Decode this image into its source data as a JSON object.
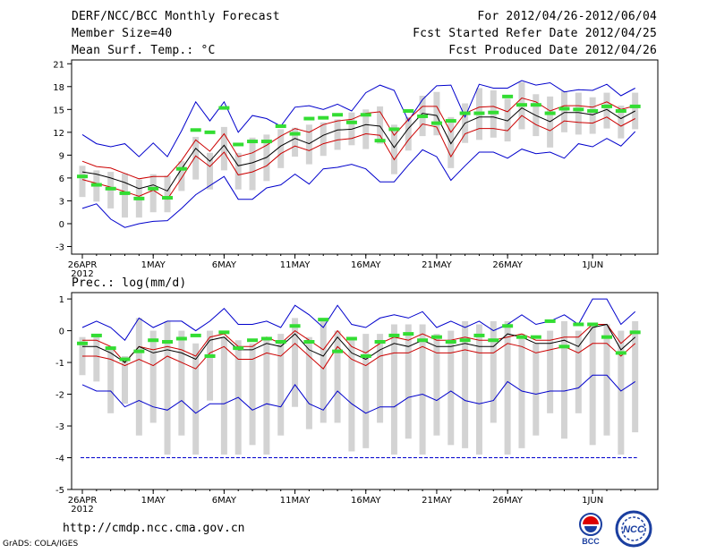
{
  "header": {
    "title": "DERF/NCC/BCC Monthly Forecast",
    "member_size": "Member Size=40",
    "variable": "Mean Surf. Temp.: °C",
    "period": "For 2012/04/26-2012/06/04",
    "start_date": "Fcst Started Refer Date 2012/04/25",
    "produced_date": "Fcst Produced Date 2012/04/26"
  },
  "footer": {
    "url": "http://cmdp.ncc.cma.gov.cn",
    "credit": "GrADS: COLA/IGES",
    "logo_bcc": "BCC",
    "logo_ncc": "NCC"
  },
  "colors": {
    "envelope": "#0000cc",
    "spread": "#cc0000",
    "mean": "#000000",
    "box": "#d3d3d3",
    "median": "#33dd33",
    "baseline": "#0000cc"
  },
  "chart_data": [
    {
      "type": "line",
      "title": "Mean Surf. Temp.: °C",
      "xlabel": "",
      "ylabel": "°C",
      "ylim": [
        -4,
        21.5
      ],
      "yticks": [
        -3,
        0,
        3,
        6,
        9,
        12,
        15,
        18,
        21
      ],
      "xticks": [
        {
          "day": 0,
          "label": "26APR",
          "sub": "2012"
        },
        {
          "day": 5,
          "label": "1MAY"
        },
        {
          "day": 10,
          "label": "6MAY"
        },
        {
          "day": 15,
          "label": "11MAY"
        },
        {
          "day": 20,
          "label": "16MAY"
        },
        {
          "day": 25,
          "label": "21MAY"
        },
        {
          "day": 30,
          "label": "26MAY"
        },
        {
          "day": 36,
          "label": "1JUN"
        }
      ],
      "x_days": [
        0,
        1,
        2,
        3,
        4,
        5,
        6,
        7,
        8,
        9,
        10,
        11,
        12,
        13,
        14,
        15,
        16,
        17,
        18,
        19,
        20,
        21,
        22,
        23,
        24,
        25,
        26,
        27,
        28,
        29,
        30,
        31,
        32,
        33,
        34,
        35,
        36,
        37,
        38,
        39
      ],
      "series": [
        {
          "name": "max",
          "values": [
            11.7,
            10.5,
            10.1,
            10.5,
            8.8,
            10.6,
            8.8,
            12.2,
            16,
            13.5,
            16,
            12,
            14.2,
            13.8,
            12.8,
            15.3,
            15.5,
            15,
            15.7,
            14.8,
            17.2,
            18.2,
            17.5,
            13.5,
            16.3,
            18.1,
            18.2,
            14,
            18.3,
            17.8,
            17.8,
            18.8,
            18.2,
            18.5,
            17.3,
            17.6,
            17.5,
            18.3,
            16.8,
            17.8
          ]
        },
        {
          "name": "upper",
          "values": [
            8.2,
            7.5,
            7.3,
            6.6,
            5.9,
            6.2,
            6.2,
            8.3,
            11,
            9.5,
            11.8,
            8.8,
            9.3,
            10.3,
            11.5,
            12.5,
            12,
            13,
            13.5,
            13.7,
            14.5,
            14.7,
            11.6,
            13.7,
            15.4,
            15.4,
            12,
            14.5,
            15.3,
            15.4,
            14.7,
            16.5,
            16,
            14.8,
            15.5,
            15.5,
            15.3,
            16,
            15,
            15.5
          ]
        },
        {
          "name": "mean",
          "values": [
            6.8,
            6.5,
            6,
            5.4,
            4.6,
            5.1,
            4.3,
            7.2,
            9.9,
            8.2,
            10.3,
            7.6,
            8,
            8.7,
            10.2,
            11.2,
            10.5,
            11.6,
            12.3,
            12.4,
            13,
            12.8,
            10,
            12.5,
            14.5,
            14.2,
            10.5,
            13.2,
            14,
            14,
            13.5,
            15.2,
            14.2,
            13.4,
            14.6,
            14.6,
            14.3,
            15,
            13.8,
            14.8
          ]
        },
        {
          "name": "lower",
          "values": [
            5.8,
            5.3,
            4.8,
            4.2,
            3.6,
            4.4,
            3.2,
            6,
            8.9,
            7.5,
            9.4,
            6.4,
            6.8,
            7.6,
            9.2,
            10.2,
            9.6,
            10.5,
            11,
            11.2,
            11.8,
            11.6,
            8.4,
            11,
            13.1,
            12.7,
            8.8,
            11.8,
            12.5,
            12.5,
            12.2,
            14.2,
            13,
            12.2,
            13.5,
            13.3,
            13.2,
            14,
            12.8,
            13.8
          ]
        },
        {
          "name": "min",
          "values": [
            2,
            2.6,
            0.6,
            -0.5,
            0,
            0.3,
            0.4,
            2,
            3.8,
            5,
            6.2,
            3.2,
            3.2,
            4.7,
            5.1,
            6.5,
            5.2,
            7.2,
            7.4,
            7.8,
            7.2,
            5.5,
            5.5,
            7.7,
            9.7,
            8.8,
            5.7,
            7.6,
            9.4,
            9.4,
            8.6,
            9.8,
            9.2,
            9.4,
            8.6,
            10.5,
            10.1,
            11.2,
            10.2,
            12.1
          ]
        }
      ],
      "boxes": {
        "low": [
          3.5,
          2.9,
          2,
          0.8,
          0.8,
          1.5,
          1.5,
          4.3,
          5.8,
          4.5,
          7,
          4.5,
          4.4,
          5.6,
          7.3,
          8.8,
          7.8,
          8.9,
          9.7,
          10.3,
          9.8,
          10.5,
          6.5,
          9.6,
          11.5,
          11.6,
          7.3,
          10.6,
          11,
          11.3,
          10.8,
          12.4,
          11.5,
          10,
          12,
          11.7,
          11.8,
          12.5,
          11.2,
          12.4
        ],
        "high": [
          7.6,
          7,
          6.8,
          6.6,
          5.8,
          6.5,
          6.3,
          8.2,
          11.4,
          9.3,
          12.7,
          9.3,
          11.3,
          11.7,
          12.4,
          12.6,
          13,
          13.3,
          13.7,
          14.6,
          15,
          15.4,
          13,
          14,
          16.8,
          17.3,
          14,
          15.8,
          17.8,
          17.5,
          16.4,
          18.6,
          17,
          16.7,
          17.4,
          17.2,
          16.6,
          17.2,
          15.5,
          17.2
        ]
      },
      "medians": [
        6.2,
        5.1,
        4.6,
        4,
        3.3,
        4.6,
        3.4,
        7.2,
        12.3,
        12,
        15.2,
        10.4,
        10.8,
        10.8,
        12.8,
        11.8,
        13.8,
        13.9,
        14.3,
        13.3,
        14.3,
        10.9,
        12.4,
        14.8,
        14.1,
        13.2,
        13.5,
        14.5,
        14.5,
        14.6,
        16.7,
        15.6,
        15.6,
        14.5,
        15.1,
        15,
        14.8,
        15.4,
        14.8,
        15.4
      ]
    },
    {
      "type": "line",
      "title": "Prec.: log(mm/d)",
      "xlabel": "",
      "ylabel": "log(mm/d)",
      "ylim": [
        -5,
        1.2
      ],
      "yticks": [
        -5,
        -4,
        -3,
        -2,
        -1,
        0,
        1
      ],
      "xticks": [
        {
          "day": 0,
          "label": "26APR",
          "sub": "2012"
        },
        {
          "day": 5,
          "label": "1MAY"
        },
        {
          "day": 10,
          "label": "6MAY"
        },
        {
          "day": 15,
          "label": "11MAY"
        },
        {
          "day": 20,
          "label": "16MAY"
        },
        {
          "day": 25,
          "label": "21MAY"
        },
        {
          "day": 30,
          "label": "26MAY"
        },
        {
          "day": 36,
          "label": "1JUN"
        }
      ],
      "x_days": [
        0,
        1,
        2,
        3,
        4,
        5,
        6,
        7,
        8,
        9,
        10,
        11,
        12,
        13,
        14,
        15,
        16,
        17,
        18,
        19,
        20,
        21,
        22,
        23,
        24,
        25,
        26,
        27,
        28,
        29,
        30,
        31,
        32,
        33,
        34,
        35,
        36,
        37,
        38,
        39
      ],
      "series": [
        {
          "name": "max",
          "values": [
            0.1,
            0.3,
            0.1,
            -0.3,
            0.4,
            0.1,
            0.3,
            0.3,
            0,
            0.3,
            0.7,
            0.2,
            0.2,
            0.3,
            0.1,
            0.8,
            0.5,
            0.1,
            0.8,
            0.2,
            0.1,
            0.4,
            0.5,
            0.4,
            0.6,
            0.1,
            0.3,
            0.1,
            0.3,
            0,
            0.2,
            0.5,
            0.2,
            0.3,
            0.5,
            0.2,
            1,
            1,
            0.2,
            0.6
          ]
        },
        {
          "name": "upper",
          "values": [
            -0.3,
            -0.3,
            -0.5,
            -1,
            -0.5,
            -0.6,
            -0.5,
            -0.6,
            -0.8,
            -0.2,
            -0.1,
            -0.5,
            -0.5,
            -0.2,
            -0.4,
            0,
            -0.3,
            -0.6,
            0,
            -0.5,
            -0.7,
            -0.4,
            -0.2,
            -0.3,
            -0.1,
            -0.3,
            -0.3,
            -0.2,
            -0.3,
            -0.3,
            -0.2,
            -0.1,
            -0.3,
            -0.3,
            -0.2,
            -0.2,
            0.2,
            0.2,
            -0.4,
            0
          ]
        },
        {
          "name": "mean",
          "values": [
            -0.5,
            -0.5,
            -0.7,
            -1,
            -0.5,
            -0.7,
            -0.6,
            -0.7,
            -0.9,
            -0.3,
            -0.2,
            -0.6,
            -0.6,
            -0.4,
            -0.5,
            -0.1,
            -0.6,
            -0.8,
            -0.2,
            -0.7,
            -0.9,
            -0.6,
            -0.4,
            -0.5,
            -0.3,
            -0.5,
            -0.5,
            -0.4,
            -0.5,
            -0.5,
            -0.1,
            -0.2,
            -0.4,
            -0.4,
            -0.3,
            -0.5,
            0.1,
            0.2,
            -0.6,
            -0.2
          ]
        },
        {
          "name": "lower",
          "values": [
            -0.8,
            -0.8,
            -0.9,
            -1.1,
            -0.9,
            -1.1,
            -0.8,
            -1,
            -1.2,
            -0.7,
            -0.5,
            -0.9,
            -0.9,
            -0.7,
            -0.8,
            -0.4,
            -0.8,
            -1.2,
            -0.5,
            -0.9,
            -1.1,
            -0.8,
            -0.7,
            -0.7,
            -0.5,
            -0.7,
            -0.7,
            -0.6,
            -0.7,
            -0.7,
            -0.4,
            -0.5,
            -0.7,
            -0.6,
            -0.5,
            -0.7,
            -0.4,
            -0.4,
            -0.8,
            -0.4
          ]
        },
        {
          "name": "min",
          "values": [
            -1.7,
            -1.9,
            -1.9,
            -2.4,
            -2.2,
            -2.4,
            -2.5,
            -2.2,
            -2.6,
            -2.3,
            -2.3,
            -2.1,
            -2.5,
            -2.3,
            -2.4,
            -1.7,
            -2.3,
            -2.5,
            -1.9,
            -2.3,
            -2.6,
            -2.4,
            -2.4,
            -2.1,
            -2,
            -2.2,
            -1.9,
            -2.2,
            -2.3,
            -2.2,
            -1.6,
            -1.9,
            -2,
            -1.9,
            -1.9,
            -1.8,
            -1.4,
            -1.4,
            -1.9,
            -1.6
          ]
        }
      ],
      "boxes": {
        "low": [
          -1.4,
          -1.6,
          -2.6,
          -2.3,
          -3.3,
          -2.9,
          -3.9,
          -3.3,
          -3.9,
          -2.2,
          -3.9,
          -3.9,
          -3.6,
          -3.9,
          -3.3,
          -2.4,
          -3.1,
          -2.9,
          -2.9,
          -3.8,
          -3.7,
          -2.9,
          -3.9,
          -3.4,
          -3.9,
          -3.3,
          -3.6,
          -3.7,
          -3.9,
          -2.9,
          -3.9,
          -3.7,
          -3.3,
          -2.6,
          -3.4,
          -2.6,
          -3.6,
          -3.3,
          -3.9,
          -3.2
        ],
        "high": [
          -0.2,
          -0.1,
          -0.6,
          -0.8,
          0.4,
          0,
          0.3,
          0,
          -0.4,
          0,
          -0.2,
          -0.3,
          -0.4,
          -0.2,
          -0.1,
          0.4,
          -0.2,
          0.3,
          0,
          -0.3,
          -0.1,
          -0.1,
          0.2,
          0.2,
          0.2,
          -0.1,
          0,
          0.3,
          0.2,
          0.3,
          0.3,
          -0.1,
          -0.4,
          0,
          0.3,
          0,
          0.2,
          0.2,
          0,
          0.3
        ]
      },
      "medians": [
        -0.4,
        -0.15,
        -0.55,
        -0.9,
        -0.65,
        -0.3,
        -0.35,
        -0.25,
        -0.15,
        -0.8,
        -0.05,
        -0.55,
        -0.3,
        -0.25,
        -0.35,
        0.15,
        -0.35,
        0.35,
        -0.65,
        -0.25,
        -0.8,
        -0.35,
        -0.15,
        -0.1,
        -0.3,
        -0.2,
        -0.35,
        -0.3,
        -0.15,
        -0.3,
        0.15,
        -0.2,
        -0.2,
        0.3,
        -0.5,
        0.2,
        0.2,
        -0.2,
        -0.7,
        -0.05
      ],
      "baseline": -4
    }
  ]
}
